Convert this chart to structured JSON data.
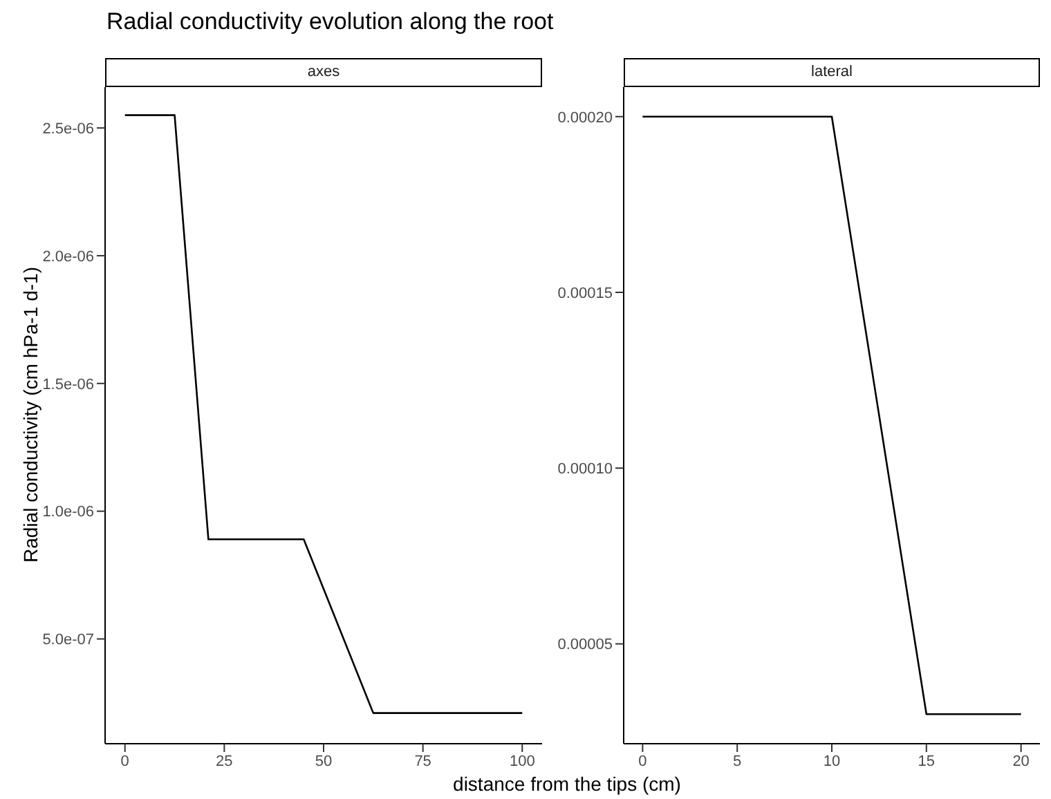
{
  "chart_data": [
    {
      "type": "line",
      "title": "Radial conductivity evolution along the root",
      "subtitle": "axes",
      "ylabel": "Radial conductivity (cm hPa-1 d-1)",
      "xlabel": "distance from the tips (cm)",
      "grid": false,
      "legend": false,
      "marker": "none",
      "line_style": "solid",
      "series": [
        {
          "color": "#000000",
          "x": [
            0,
            12.5,
            21,
            45,
            62.5,
            100
          ],
          "values": [
            2.55e-06,
            2.55e-06,
            8.9e-07,
            8.9e-07,
            2.1e-07,
            2.1e-07
          ]
        }
      ],
      "xlim": [
        -5,
        105
      ],
      "xticks": [
        0,
        25,
        50,
        75,
        100
      ],
      "ylim": [
        9e-08,
        2.66e-06
      ],
      "yticks": [
        {
          "value": 5e-07,
          "label": "5.0e-07"
        },
        {
          "value": 1e-06,
          "label": "1.0e-06"
        },
        {
          "value": 1.5e-06,
          "label": "1.5e-06"
        },
        {
          "value": 2e-06,
          "label": "2.0e-06"
        },
        {
          "value": 2.5e-06,
          "label": "2.5e-06"
        }
      ]
    },
    {
      "type": "line",
      "subtitle": "lateral",
      "grid": false,
      "legend": false,
      "marker": "none",
      "line_style": "solid",
      "series": [
        {
          "color": "#000000",
          "x": [
            0,
            10,
            15,
            20
          ],
          "values": [
            0.0002,
            0.0002,
            3e-05,
            3e-05
          ]
        }
      ],
      "xlim": [
        -1,
        21
      ],
      "xticks": [
        0,
        5,
        10,
        15,
        20
      ],
      "ylim": [
        2.16e-05,
        0.0002084
      ],
      "yticks": [
        {
          "value": 5e-05,
          "label": "0.00005"
        },
        {
          "value": 0.0001,
          "label": "0.00010"
        },
        {
          "value": 0.00015,
          "label": "0.00015"
        },
        {
          "value": 0.0002,
          "label": "0.00020"
        }
      ]
    }
  ]
}
